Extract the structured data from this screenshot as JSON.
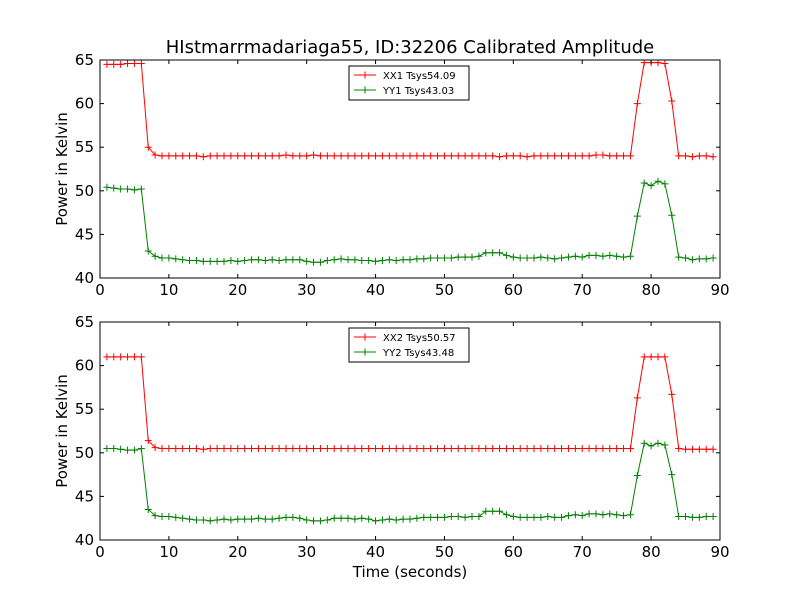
{
  "figure": {
    "title": "HIstmarrmadariaga55, ID:32206 Calibrated Amplitude"
  },
  "chart_data": [
    {
      "type": "line",
      "title": "HIstmarrmadariaga55, ID:32206 Calibrated Amplitude",
      "xlabel": "",
      "ylabel": "Power in Kelvin",
      "xlim": [
        0,
        90
      ],
      "ylim": [
        40,
        65
      ],
      "xticks": [
        0,
        10,
        20,
        30,
        40,
        50,
        60,
        70,
        80,
        90
      ],
      "yticks": [
        40,
        45,
        50,
        55,
        60,
        65
      ],
      "grid": false,
      "legend_position": "top-center",
      "series": [
        {
          "name": "XX1 Tsys54.09",
          "color": "#ff0000",
          "marker": "+",
          "x": [
            1,
            2,
            3,
            4,
            5,
            6,
            7,
            8,
            9,
            10,
            11,
            12,
            13,
            14,
            15,
            16,
            17,
            18,
            19,
            20,
            21,
            22,
            23,
            24,
            25,
            26,
            27,
            28,
            29,
            30,
            31,
            32,
            33,
            34,
            35,
            36,
            37,
            38,
            39,
            40,
            41,
            42,
            43,
            44,
            45,
            46,
            47,
            48,
            49,
            50,
            51,
            52,
            53,
            54,
            55,
            56,
            57,
            58,
            59,
            60,
            61,
            62,
            63,
            64,
            65,
            66,
            67,
            68,
            69,
            70,
            71,
            72,
            73,
            74,
            75,
            76,
            77,
            78,
            79,
            80,
            81,
            82,
            83,
            84,
            85,
            86,
            87,
            88,
            89
          ],
          "values": [
            64.5,
            64.5,
            64.5,
            64.6,
            64.6,
            64.6,
            55.0,
            54.1,
            54.0,
            54.0,
            54.0,
            54.0,
            54.0,
            54.0,
            53.9,
            54.0,
            54.0,
            54.0,
            54.0,
            54.0,
            54.0,
            54.0,
            54.0,
            54.0,
            54.0,
            54.0,
            54.1,
            54.0,
            54.0,
            54.0,
            54.1,
            54.0,
            54.0,
            54.0,
            54.0,
            54.0,
            54.0,
            54.0,
            54.0,
            54.0,
            54.0,
            54.0,
            54.0,
            54.0,
            54.0,
            54.0,
            54.0,
            54.0,
            54.0,
            54.0,
            54.0,
            54.0,
            54.0,
            54.0,
            54.0,
            54.0,
            54.0,
            53.9,
            54.0,
            54.0,
            54.0,
            53.9,
            54.0,
            54.0,
            54.0,
            54.0,
            54.0,
            54.0,
            54.0,
            54.0,
            54.0,
            54.1,
            54.1,
            54.0,
            54.0,
            54.0,
            54.0,
            60.0,
            64.7,
            64.7,
            64.7,
            64.6,
            60.3,
            54.0,
            54.0,
            53.9,
            54.0,
            54.0,
            53.9
          ]
        },
        {
          "name": "YY1 Tsys43.03",
          "color": "#008000",
          "marker": "+",
          "x": [
            1,
            2,
            3,
            4,
            5,
            6,
            7,
            8,
            9,
            10,
            11,
            12,
            13,
            14,
            15,
            16,
            17,
            18,
            19,
            20,
            21,
            22,
            23,
            24,
            25,
            26,
            27,
            28,
            29,
            30,
            31,
            32,
            33,
            34,
            35,
            36,
            37,
            38,
            39,
            40,
            41,
            42,
            43,
            44,
            45,
            46,
            47,
            48,
            49,
            50,
            51,
            52,
            53,
            54,
            55,
            56,
            57,
            58,
            59,
            60,
            61,
            62,
            63,
            64,
            65,
            66,
            67,
            68,
            69,
            70,
            71,
            72,
            73,
            74,
            75,
            76,
            77,
            78,
            79,
            80,
            81,
            82,
            83,
            84,
            85,
            86,
            87,
            88,
            89
          ],
          "values": [
            50.4,
            50.3,
            50.2,
            50.2,
            50.1,
            50.2,
            43.1,
            42.5,
            42.3,
            42.3,
            42.2,
            42.1,
            42.0,
            42.0,
            41.9,
            41.9,
            41.9,
            41.9,
            42.0,
            41.9,
            42.0,
            42.1,
            42.1,
            42.0,
            42.1,
            42.0,
            42.1,
            42.1,
            42.1,
            41.9,
            41.8,
            41.8,
            42.0,
            42.1,
            42.2,
            42.1,
            42.1,
            42.0,
            42.0,
            41.9,
            42.0,
            42.1,
            42.0,
            42.1,
            42.1,
            42.2,
            42.2,
            42.3,
            42.3,
            42.3,
            42.3,
            42.4,
            42.4,
            42.4,
            42.5,
            42.9,
            42.9,
            42.9,
            42.6,
            42.4,
            42.3,
            42.3,
            42.3,
            42.4,
            42.3,
            42.2,
            42.3,
            42.4,
            42.5,
            42.4,
            42.6,
            42.6,
            42.5,
            42.6,
            42.5,
            42.4,
            42.5,
            47.1,
            50.9,
            50.6,
            51.1,
            50.8,
            47.2,
            42.4,
            42.3,
            42.1,
            42.2,
            42.2,
            42.3
          ]
        }
      ]
    },
    {
      "type": "line",
      "title": "",
      "xlabel": "Time (seconds)",
      "ylabel": "Power in Kelvin",
      "xlim": [
        0,
        90
      ],
      "ylim": [
        40,
        65
      ],
      "xticks": [
        0,
        10,
        20,
        30,
        40,
        50,
        60,
        70,
        80,
        90
      ],
      "yticks": [
        40,
        45,
        50,
        55,
        60,
        65
      ],
      "grid": false,
      "legend_position": "top-center",
      "series": [
        {
          "name": "XX2 Tsys50.57",
          "color": "#ff0000",
          "marker": "+",
          "x": [
            1,
            2,
            3,
            4,
            5,
            6,
            7,
            8,
            9,
            10,
            11,
            12,
            13,
            14,
            15,
            16,
            17,
            18,
            19,
            20,
            21,
            22,
            23,
            24,
            25,
            26,
            27,
            28,
            29,
            30,
            31,
            32,
            33,
            34,
            35,
            36,
            37,
            38,
            39,
            40,
            41,
            42,
            43,
            44,
            45,
            46,
            47,
            48,
            49,
            50,
            51,
            52,
            53,
            54,
            55,
            56,
            57,
            58,
            59,
            60,
            61,
            62,
            63,
            64,
            65,
            66,
            67,
            68,
            69,
            70,
            71,
            72,
            73,
            74,
            75,
            76,
            77,
            78,
            79,
            80,
            81,
            82,
            83,
            84,
            85,
            86,
            87,
            88,
            89
          ],
          "values": [
            61.0,
            61.0,
            61.0,
            61.0,
            61.0,
            61.0,
            51.4,
            50.6,
            50.5,
            50.5,
            50.5,
            50.5,
            50.5,
            50.5,
            50.4,
            50.5,
            50.5,
            50.5,
            50.5,
            50.5,
            50.5,
            50.5,
            50.5,
            50.5,
            50.5,
            50.5,
            50.5,
            50.5,
            50.5,
            50.5,
            50.5,
            50.5,
            50.5,
            50.5,
            50.5,
            50.5,
            50.5,
            50.5,
            50.5,
            50.5,
            50.5,
            50.5,
            50.5,
            50.5,
            50.5,
            50.5,
            50.5,
            50.5,
            50.5,
            50.5,
            50.5,
            50.5,
            50.5,
            50.5,
            50.5,
            50.5,
            50.5,
            50.5,
            50.5,
            50.5,
            50.5,
            50.5,
            50.5,
            50.5,
            50.5,
            50.5,
            50.5,
            50.5,
            50.5,
            50.5,
            50.5,
            50.5,
            50.5,
            50.5,
            50.5,
            50.5,
            50.5,
            56.3,
            61.0,
            61.0,
            61.0,
            61.0,
            56.7,
            50.5,
            50.4,
            50.4,
            50.4,
            50.4,
            50.4
          ]
        },
        {
          "name": "YY2 Tsys43.48",
          "color": "#008000",
          "marker": "+",
          "x": [
            1,
            2,
            3,
            4,
            5,
            6,
            7,
            8,
            9,
            10,
            11,
            12,
            13,
            14,
            15,
            16,
            17,
            18,
            19,
            20,
            21,
            22,
            23,
            24,
            25,
            26,
            27,
            28,
            29,
            30,
            31,
            32,
            33,
            34,
            35,
            36,
            37,
            38,
            39,
            40,
            41,
            42,
            43,
            44,
            45,
            46,
            47,
            48,
            49,
            50,
            51,
            52,
            53,
            54,
            55,
            56,
            57,
            58,
            59,
            60,
            61,
            62,
            63,
            64,
            65,
            66,
            67,
            68,
            69,
            70,
            71,
            72,
            73,
            74,
            75,
            76,
            77,
            78,
            79,
            80,
            81,
            82,
            83,
            84,
            85,
            86,
            87,
            88,
            89
          ],
          "values": [
            50.5,
            50.5,
            50.4,
            50.3,
            50.3,
            50.5,
            43.5,
            42.8,
            42.7,
            42.7,
            42.6,
            42.5,
            42.4,
            42.3,
            42.3,
            42.2,
            42.3,
            42.4,
            42.3,
            42.4,
            42.4,
            42.4,
            42.5,
            42.4,
            42.4,
            42.5,
            42.6,
            42.6,
            42.5,
            42.3,
            42.2,
            42.2,
            42.3,
            42.5,
            42.5,
            42.5,
            42.4,
            42.5,
            42.4,
            42.2,
            42.3,
            42.4,
            42.3,
            42.4,
            42.4,
            42.5,
            42.6,
            42.6,
            42.6,
            42.6,
            42.7,
            42.7,
            42.6,
            42.7,
            42.7,
            43.3,
            43.3,
            43.3,
            42.9,
            42.7,
            42.6,
            42.6,
            42.6,
            42.6,
            42.7,
            42.6,
            42.6,
            42.8,
            42.9,
            42.8,
            43.0,
            43.0,
            42.9,
            43.0,
            42.9,
            42.8,
            42.9,
            47.4,
            51.1,
            50.8,
            51.1,
            50.9,
            47.5,
            42.7,
            42.7,
            42.6,
            42.6,
            42.7,
            42.7
          ]
        }
      ]
    }
  ]
}
